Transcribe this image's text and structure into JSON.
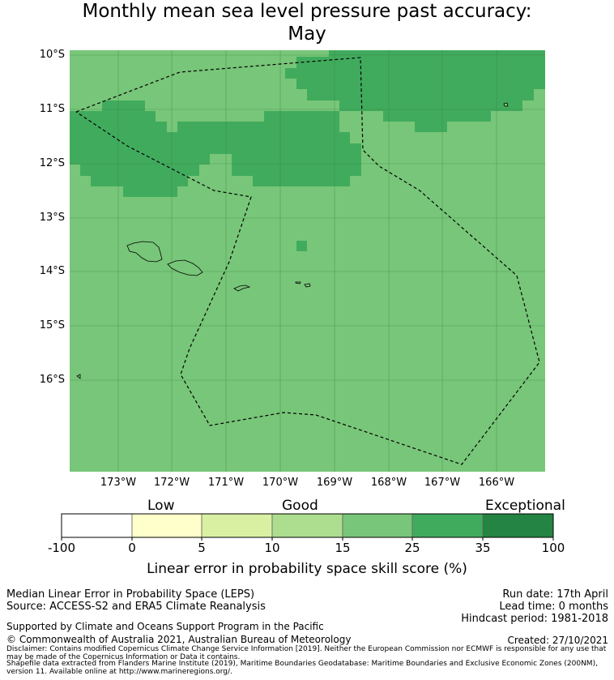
{
  "title_line1": "Monthly mean sea level pressure past accuracy:",
  "title_line2": "May",
  "lat_labels": [
    "10°S",
    "11°S",
    "12°S",
    "13°S",
    "14°S",
    "15°S",
    "16°S"
  ],
  "lon_labels": [
    "173°W",
    "172°W",
    "171°W",
    "170°W",
    "169°W",
    "168°W",
    "167°W",
    "166°W"
  ],
  "colorbar": {
    "categories": [
      "Low",
      "Good",
      "Exceptional"
    ],
    "ticks": [
      "-100",
      "0",
      "5",
      "10",
      "15",
      "25",
      "35",
      "100"
    ],
    "colors": [
      "#ffffff",
      "#ffffcc",
      "#d9f0a3",
      "#addd8e",
      "#78c679",
      "#41ab5d",
      "#238443"
    ],
    "label": "Linear error in probability space skill score (%)"
  },
  "map_colors": {
    "base": "#78c679",
    "high": "#41ab5d",
    "grid": "#2f7a3a"
  },
  "footer": {
    "left1": "Median Linear Error in Probability Space (LEPS)",
    "left2": "Source: ACCESS-S2 and ERA5 Climate Reanalysis",
    "right1": "Run date: 17th April",
    "right2": "Lead time: 0 months",
    "right3": "Hindcast period: 1981-2018",
    "support": "Supported by Climate and Oceans Support Program in the Pacific",
    "copyright": "© Commonwealth of Australia 2021, Australian Bureau of Meteorology",
    "created": "Created: 27/10/2021",
    "disclaimer": "Disclaimer: Contains modified Copernicus Climate Change Service Information [2019]. Neither the European Commission nor ECMWF is responsible for any use that may be made of the Copernicus Information or Data it contains.",
    "shapefile": "Shapefile data extracted from Flanders Marine Institute (2019), Maritime Boundaries Geodatabase: Maritime Boundaries and Exclusive Economic Zones (200NM), version 11. Available online at http://www.marineregions.org/."
  }
}
